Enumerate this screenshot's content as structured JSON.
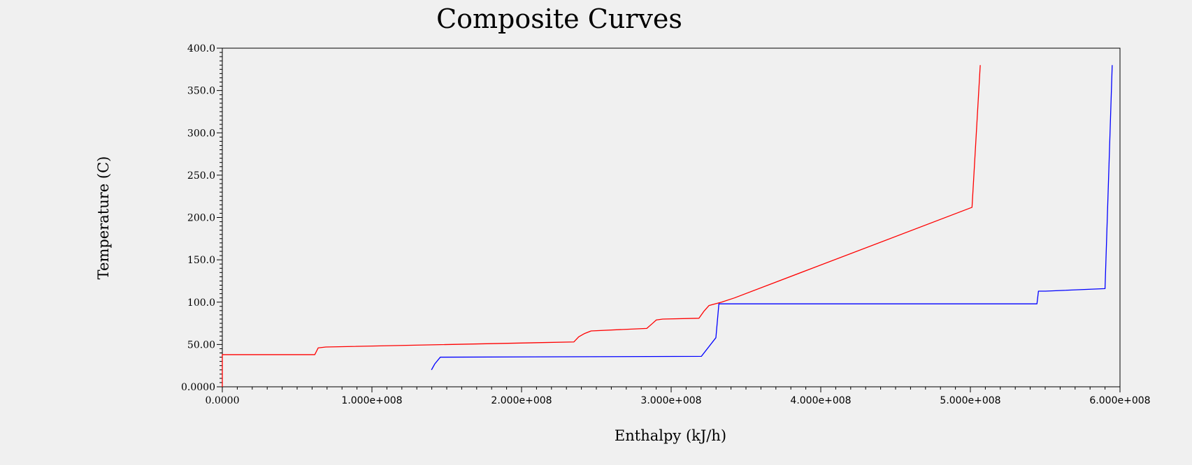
{
  "chart_data": {
    "type": "line",
    "title": "Composite Curves",
    "xlabel": "Enthalpy (kJ/h)",
    "ylabel": "Temperature (C)",
    "xlim": [
      0,
      600000000
    ],
    "ylim": [
      0,
      400
    ],
    "grid": false,
    "legend": "none",
    "x_tick_values": [
      0,
      100000000,
      200000000,
      300000000,
      400000000,
      500000000,
      600000000
    ],
    "x_tick_labels": [
      "0.0000",
      "1.000e+008",
      "2.000e+008",
      "3.000e+008",
      "4.000e+008",
      "5.000e+008",
      "6.000e+008"
    ],
    "y_tick_values": [
      0,
      50,
      100,
      150,
      200,
      250,
      300,
      350,
      400
    ],
    "y_tick_labels": [
      "0.0000",
      "50.00",
      "100.0",
      "150.0",
      "200.0",
      "250.0",
      "300.0",
      "350.0",
      "400.0"
    ],
    "series": [
      {
        "color": "#ff0000",
        "x": [
          0,
          0,
          61800000,
          64100000,
          69200000,
          235000000,
          238200000,
          242200000,
          246500000,
          283700000,
          287600000,
          290100000,
          294400000,
          318600000,
          321800000,
          325300000,
          333700000,
          342300000,
          501100000,
          506600000
        ],
        "y": [
          0,
          38,
          38,
          46,
          47,
          53,
          59,
          63,
          66,
          69,
          75,
          79,
          80,
          81,
          89,
          96,
          100,
          105,
          212,
          380
        ]
      },
      {
        "color": "#0000ff",
        "x": [
          139800000,
          142000000,
          145700000,
          320200000,
          329900000,
          331900000,
          544500000,
          545500000,
          550200000,
          590000000,
          594800000
        ],
        "y": [
          20,
          27,
          35,
          36,
          58,
          98,
          98,
          113,
          113,
          116,
          380
        ]
      }
    ]
  }
}
